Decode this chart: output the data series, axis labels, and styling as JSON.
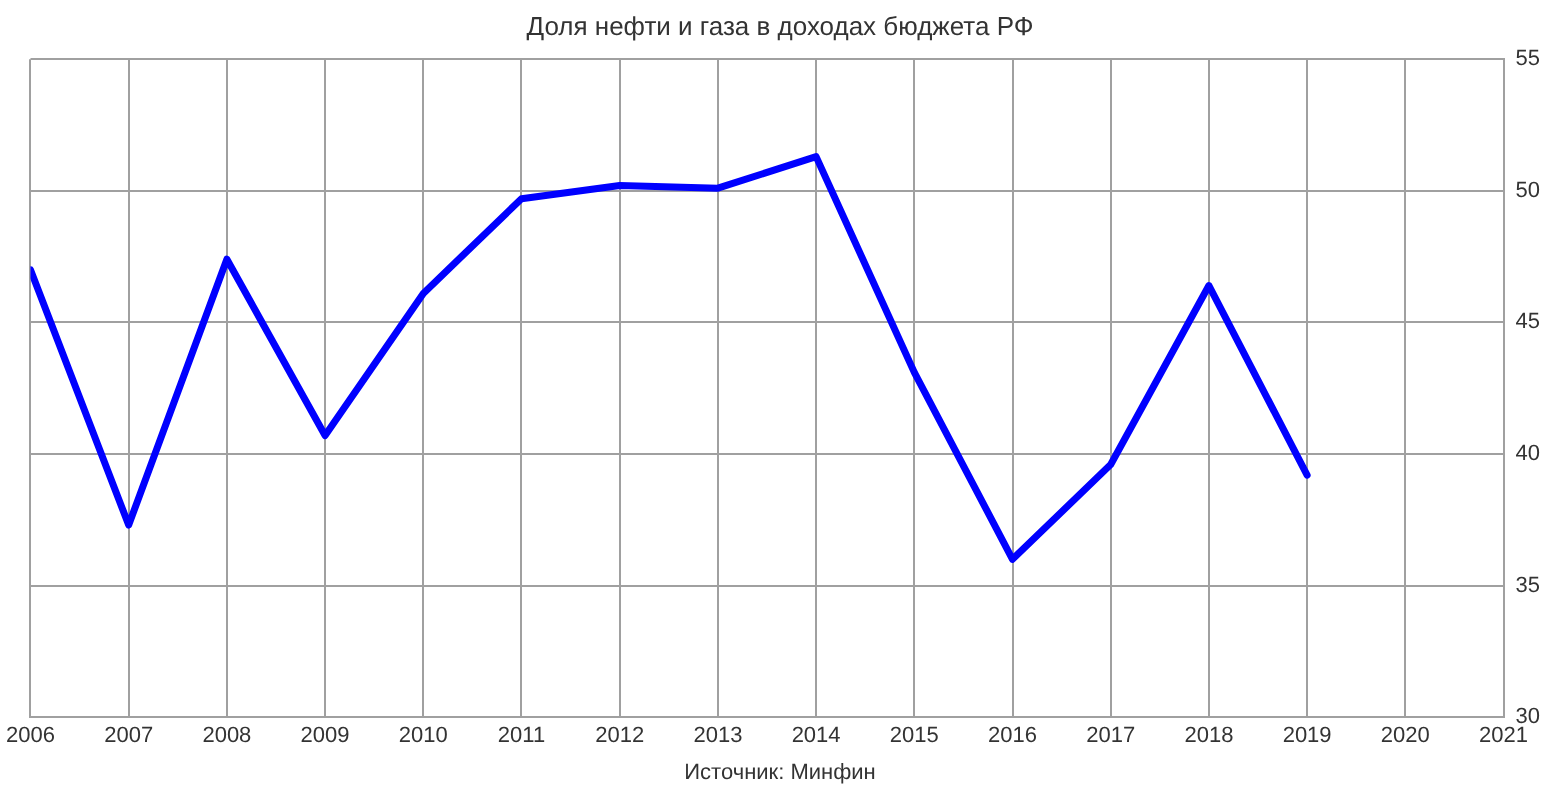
{
  "chart_data": {
    "type": "line",
    "title": "Доля нефти и газа в доходах бюджета РФ",
    "x": [
      2006,
      2007,
      2008,
      2009,
      2010,
      2011,
      2012,
      2013,
      2014,
      2015,
      2016,
      2017,
      2018,
      2019
    ],
    "series": [
      {
        "color": "#0000ff",
        "values": [
          47.0,
          37.3,
          47.4,
          40.7,
          46.1,
          49.7,
          50.2,
          50.1,
          51.3,
          43.1,
          36.0,
          39.6,
          46.4,
          39.2
        ]
      }
    ],
    "xlim": [
      2006,
      2021
    ],
    "xticks": [
      2006,
      2007,
      2008,
      2009,
      2010,
      2011,
      2012,
      2013,
      2014,
      2015,
      2016,
      2017,
      2018,
      2019,
      2020,
      2021
    ],
    "ylim": [
      30,
      55
    ],
    "yticks": [
      30,
      35,
      40,
      45,
      50,
      55
    ],
    "grid": true,
    "legend": false,
    "marker": "none",
    "line_style": "solid",
    "annotations": [
      "Источник: Минфин"
    ]
  }
}
